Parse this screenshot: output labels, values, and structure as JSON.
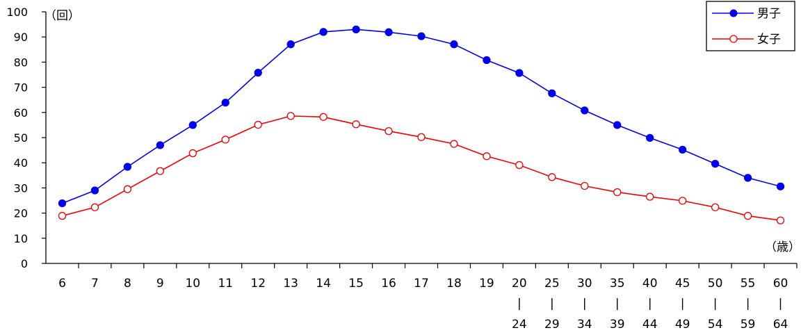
{
  "chart_data": {
    "type": "line",
    "y_unit_label": "（回）",
    "x_unit_label": "（歳）",
    "ylim": [
      0,
      100
    ],
    "yticks": [
      0,
      10,
      20,
      30,
      40,
      50,
      60,
      70,
      80,
      90,
      100
    ],
    "grid": false,
    "legend_position": "top-right",
    "categories": [
      {
        "top": "6",
        "bottom": ""
      },
      {
        "top": "7",
        "bottom": ""
      },
      {
        "top": "8",
        "bottom": ""
      },
      {
        "top": "9",
        "bottom": ""
      },
      {
        "top": "10",
        "bottom": ""
      },
      {
        "top": "11",
        "bottom": ""
      },
      {
        "top": "12",
        "bottom": ""
      },
      {
        "top": "13",
        "bottom": ""
      },
      {
        "top": "14",
        "bottom": ""
      },
      {
        "top": "15",
        "bottom": ""
      },
      {
        "top": "16",
        "bottom": ""
      },
      {
        "top": "17",
        "bottom": ""
      },
      {
        "top": "18",
        "bottom": ""
      },
      {
        "top": "19",
        "bottom": ""
      },
      {
        "top": "20",
        "bottom": "24"
      },
      {
        "top": "25",
        "bottom": "29"
      },
      {
        "top": "30",
        "bottom": "34"
      },
      {
        "top": "35",
        "bottom": "39"
      },
      {
        "top": "40",
        "bottom": "44"
      },
      {
        "top": "45",
        "bottom": "49"
      },
      {
        "top": "50",
        "bottom": "54"
      },
      {
        "top": "55",
        "bottom": "59"
      },
      {
        "top": "60",
        "bottom": "64"
      }
    ],
    "range_mark": "|",
    "series": [
      {
        "name": "男子",
        "color": "#0000ee",
        "marker": "filled-circle",
        "values": [
          23.9,
          29.0,
          38.4,
          47.0,
          55.0,
          63.9,
          75.8,
          87.1,
          92.0,
          93.0,
          91.9,
          90.3,
          87.1,
          80.8,
          75.7,
          67.6,
          60.8,
          55.0,
          49.9,
          45.2,
          39.6,
          34.0,
          30.6
        ]
      },
      {
        "name": "女子",
        "color": "#ee0000",
        "marker": "open-circle",
        "values": [
          18.9,
          22.3,
          29.5,
          36.7,
          43.8,
          49.2,
          55.1,
          58.6,
          58.2,
          55.3,
          52.6,
          50.2,
          47.5,
          42.6,
          39.1,
          34.3,
          30.8,
          28.3,
          26.5,
          24.9,
          22.3,
          18.9,
          17.1
        ]
      }
    ]
  }
}
